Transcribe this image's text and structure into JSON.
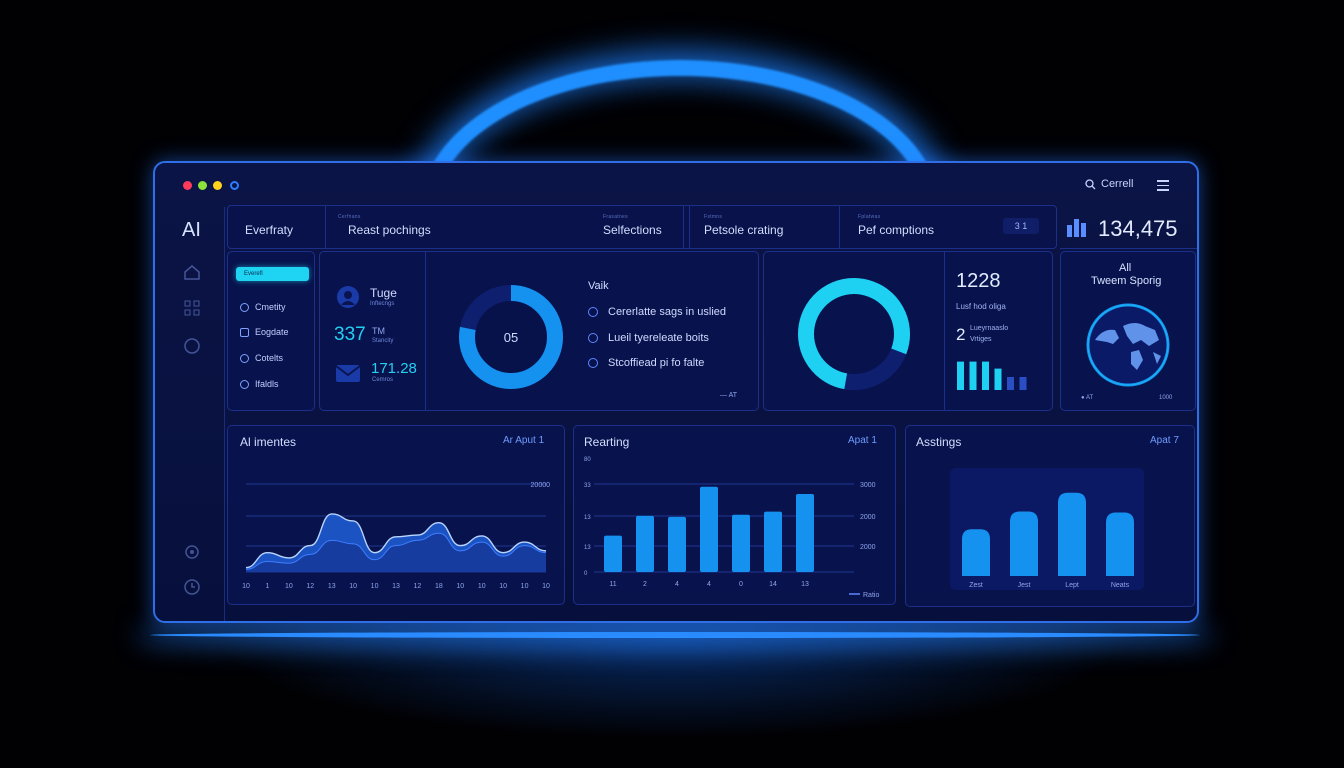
{
  "window": {
    "search_label": "Cerrell",
    "dots": [
      "#ff3b5c",
      "#8ce23b",
      "#ffd21e",
      "#2a7dff"
    ]
  },
  "sidebar": {
    "logo": "AI",
    "icons": [
      "home-icon",
      "grid-icon",
      "globe-icon",
      "settings-icon",
      "clock-icon"
    ]
  },
  "topbar": {
    "tabs": [
      {
        "caption": "",
        "label": "Everfraty"
      },
      {
        "caption": "Cerfnans",
        "label": "Reast pochings"
      },
      {
        "caption": "Frasatnes",
        "label": "Selfections"
      },
      {
        "caption": "Fstmns",
        "label": "Petsole crating"
      },
      {
        "caption": "Fplatwas",
        "label": "Pef comptions"
      }
    ],
    "badge": "3 1",
    "big_stat": "134,475"
  },
  "nav": {
    "active": "Everefl",
    "items": [
      "Cmetity",
      "Eogdate",
      "Cotelts",
      "Ifaldls"
    ]
  },
  "stats": {
    "title": "Tuge",
    "subtitle": "Inftecngs",
    "value1": "337",
    "value1_unit": "TM",
    "value1_sub": "Stancity",
    "value2": "171.28",
    "value2_sub": "Cemros"
  },
  "donut1": {
    "center": "05",
    "fraction": 0.78
  },
  "checklist": {
    "title": "Vaik",
    "items": [
      "Cererlatte sags in uslied",
      "Lueil tyereleate boits",
      "Stcoffiead pi fo falte"
    ],
    "footer": "AT"
  },
  "donut2": {
    "fraction": 0.78
  },
  "metrics": {
    "value1": "1228",
    "label1": "Lusf hod oliga",
    "value2": "2",
    "label2a": "Lueyrnaaslo",
    "label2b": "Vrtiges",
    "bars": [
      0.8,
      0.8,
      0.8,
      0.55,
      0.25,
      0.25
    ]
  },
  "globe": {
    "title1": "All",
    "title2": "Tweem Sporig",
    "foot_left": "AT",
    "foot_right": "1000"
  },
  "colors": {
    "accent": "#1fd4f2",
    "primary": "#1592f0",
    "border": "#1c2f8a"
  },
  "chart_data": [
    {
      "type": "area",
      "title": "Al imentes",
      "period": "Ar Aput 1",
      "ylabel_top": "20000",
      "x": [
        "10",
        "1",
        "10",
        "12",
        "13",
        "10",
        "10",
        "13",
        "12",
        "18",
        "10",
        "10",
        "10",
        "10",
        "10"
      ],
      "series": [
        {
          "values": [
            5,
            22,
            16,
            30,
            66,
            58,
            22,
            40,
            42,
            56,
            30,
            41,
            22,
            34,
            24
          ]
        },
        {
          "values": [
            3,
            12,
            10,
            20,
            36,
            32,
            14,
            30,
            36,
            44,
            24,
            34,
            18,
            30,
            22
          ]
        }
      ],
      "ylim": [
        0,
        100
      ]
    },
    {
      "type": "bar",
      "title": "Rearting",
      "period": "Apat 1",
      "y_left_ticks": [
        "0",
        "13",
        "13",
        "33",
        "80"
      ],
      "y_right_ticks": [
        "3000",
        "2000",
        "2000"
      ],
      "categories": [
        "11",
        "2",
        "4",
        "4",
        "0",
        "14",
        "13"
      ],
      "values": [
        35,
        54,
        53,
        82,
        55,
        58,
        75
      ],
      "ylim": [
        0,
        100
      ],
      "legend": "Ratio"
    },
    {
      "type": "bar",
      "title": "Asstings",
      "period": "Apat 7",
      "categories": [
        "Zest",
        "Jest",
        "Lept",
        "Neats"
      ],
      "values": [
        45,
        62,
        80,
        61
      ],
      "ylim": [
        0,
        100
      ]
    }
  ]
}
